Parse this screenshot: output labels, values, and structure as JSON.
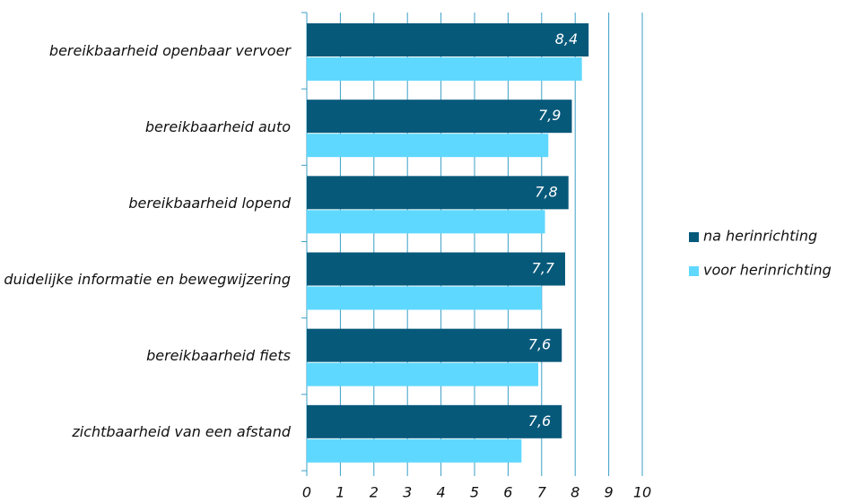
{
  "chart_data": {
    "type": "bar",
    "orientation": "horizontal",
    "categories": [
      "bereikbaarheid openbaar vervoer",
      "bereikbaarheid auto",
      "bereikbaarheid lopend",
      "duidelijke informatie en bewegwijzering",
      "bereikbaarheid fiets",
      "zichtbaarheid van een afstand"
    ],
    "series": [
      {
        "name": "na herinrichting",
        "color": "#07597a",
        "values": [
          8.4,
          7.9,
          7.8,
          7.7,
          7.6,
          7.6
        ],
        "value_labels": [
          "8,4",
          "7,9",
          "7,8",
          "7,7",
          "7,6",
          "7,6"
        ]
      },
      {
        "name": "voor herinrichting",
        "color": "#5fd8ff",
        "values": [
          8.2,
          7.2,
          7.1,
          7.0,
          6.9,
          6.4
        ]
      }
    ],
    "xlim": [
      0,
      10
    ],
    "xticks": [
      0,
      1,
      2,
      3,
      4,
      5,
      6,
      7,
      8,
      9,
      10
    ],
    "grid": true,
    "legend": "right"
  }
}
